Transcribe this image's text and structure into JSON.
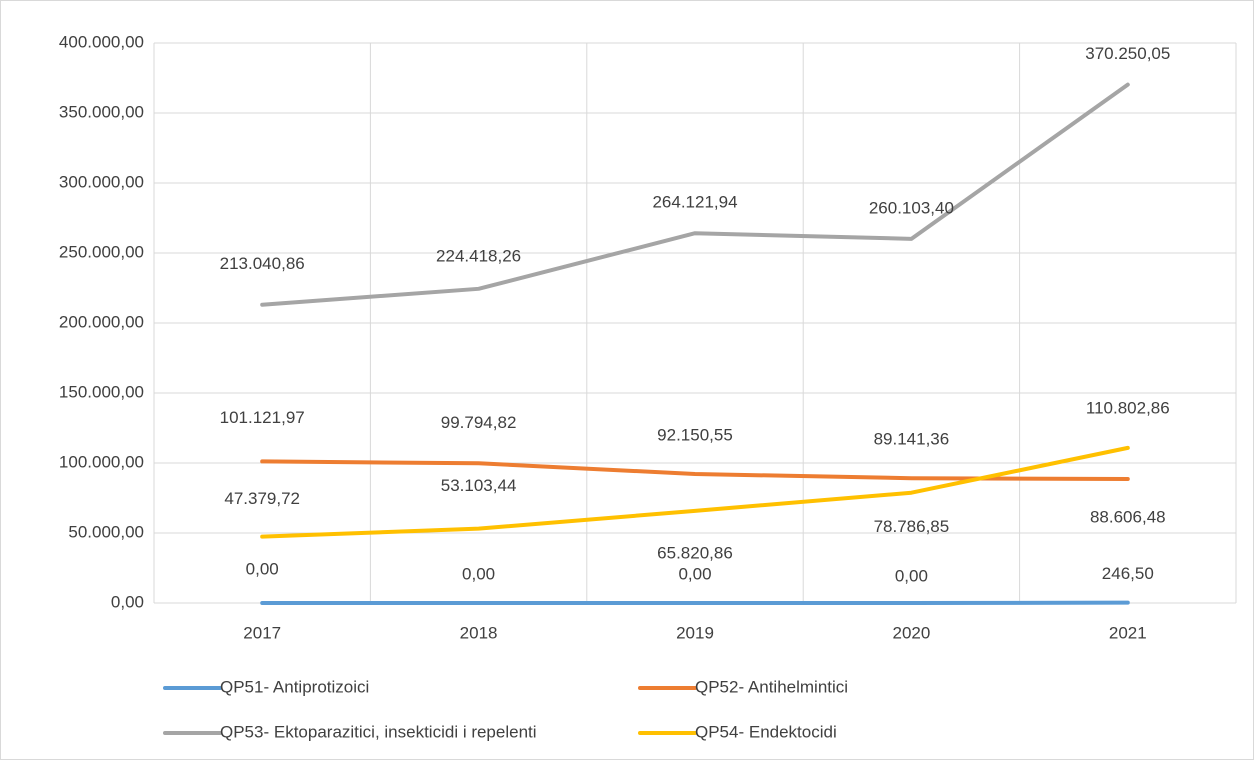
{
  "chart_data": {
    "type": "line",
    "categories": [
      "2017",
      "2018",
      "2019",
      "2020",
      "2021"
    ],
    "series": [
      {
        "name": "QP51- Antiprotizoici",
        "color": "#5b9bd5",
        "values": [
          0,
          0,
          0,
          0,
          246.5
        ],
        "value_labels": [
          "0,00",
          "0,00",
          "0,00",
          "0,00",
          "246,50"
        ]
      },
      {
        "name": "QP52- Antihelmintici",
        "color": "#ed7d31",
        "values": [
          101121.97,
          99794.82,
          92150.55,
          89141.36,
          88606.48
        ],
        "value_labels": [
          "101.121,97",
          "99.794,82",
          "92.150,55",
          "89.141,36",
          "88.606,48"
        ]
      },
      {
        "name": "QP53- Ektoparazitici, insekticidi i repelenti",
        "color": "#a5a5a5",
        "values": [
          213040.86,
          224418.26,
          264121.94,
          260103.4,
          370250.05
        ],
        "value_labels": [
          "213.040,86",
          "224.418,26",
          "264.121,94",
          "260.103,40",
          "370.250,05"
        ]
      },
      {
        "name": "QP54- Endektocidi",
        "color": "#ffc000",
        "values": [
          47379.72,
          53103.44,
          65820.86,
          78786.85,
          110802.86
        ],
        "value_labels": [
          "47.379,72",
          "53.103,44",
          "65.820,86",
          "78.786,85",
          "110.802,86"
        ]
      }
    ],
    "ylim": [
      0,
      400000
    ],
    "yticks": [
      {
        "value": 0,
        "label": "0,00"
      },
      {
        "value": 50000,
        "label": "50.000,00"
      },
      {
        "value": 100000,
        "label": "100.000,00"
      },
      {
        "value": 150000,
        "label": "150.000,00"
      },
      {
        "value": 200000,
        "label": "200.000,00"
      },
      {
        "value": 250000,
        "label": "250.000,00"
      },
      {
        "value": 300000,
        "label": "300.000,00"
      },
      {
        "value": 350000,
        "label": "350.000,00"
      },
      {
        "value": 400000,
        "label": "400.000,00"
      }
    ],
    "grid": true,
    "legend": "bottom"
  }
}
